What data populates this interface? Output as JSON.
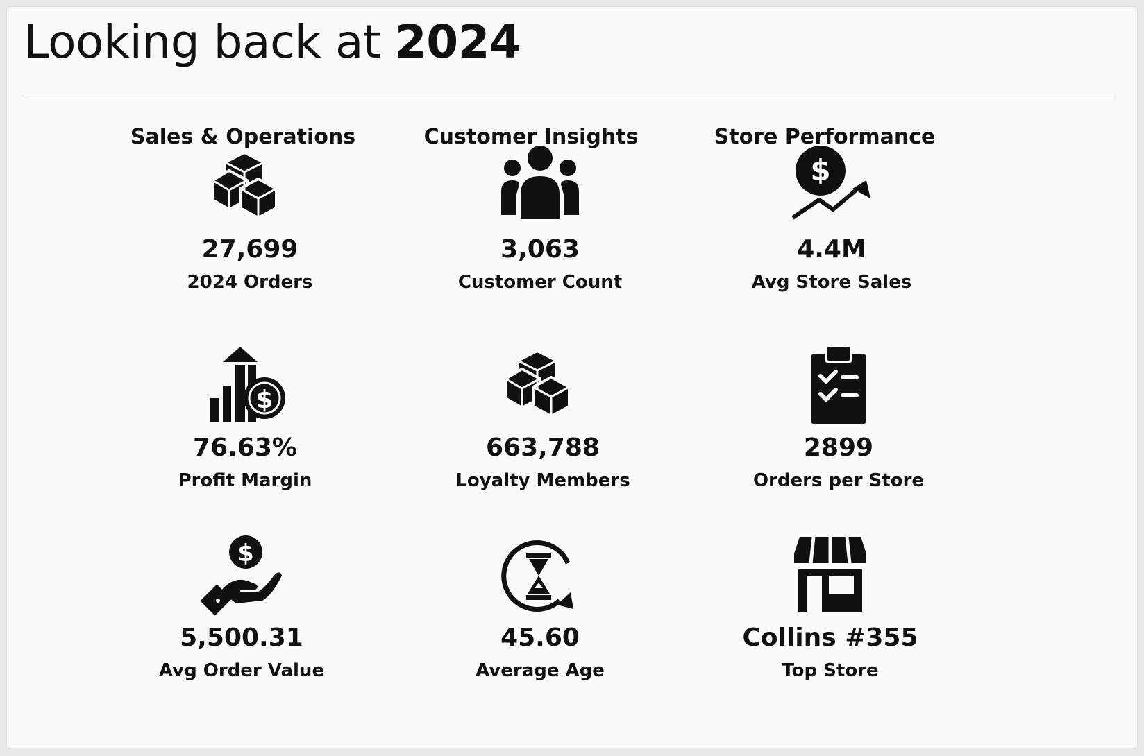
{
  "header": {
    "title_prefix": "Looking back at",
    "title_year": "2024"
  },
  "columns": [
    {
      "heading": "Sales & Operations"
    },
    {
      "heading": "Customer Insights"
    },
    {
      "heading": "Store Performance"
    }
  ],
  "kpis": {
    "orders": {
      "value": "27,699",
      "label": "2024 Orders",
      "icon": "boxes-icon"
    },
    "customers": {
      "value": "3,063",
      "label": "Customer Count",
      "icon": "people-icon"
    },
    "avg_store_sales": {
      "value": "4.4M",
      "label": "Avg Store Sales",
      "icon": "money-growth-icon"
    },
    "profit_margin": {
      "value": "76.63%",
      "label": "Profit Margin",
      "icon": "profit-chart-icon"
    },
    "loyalty": {
      "value": "663,788",
      "label": "Loyalty Members",
      "icon": "boxes-icon"
    },
    "orders_per_store": {
      "value": "2899",
      "label": "Orders per Store",
      "icon": "clipboard-checklist-icon"
    },
    "avg_order_value": {
      "value": "5,500.31",
      "label": "Avg Order Value",
      "icon": "hand-coin-icon"
    },
    "avg_age": {
      "value": "45.60",
      "label": "Average Age",
      "icon": "hourglass-cycle-icon"
    },
    "top_store": {
      "value": "Collins #355",
      "label": "Top Store",
      "icon": "storefront-icon"
    }
  },
  "colors": {
    "background": "#fafafa",
    "icon": "#111111",
    "text": "#111111"
  }
}
